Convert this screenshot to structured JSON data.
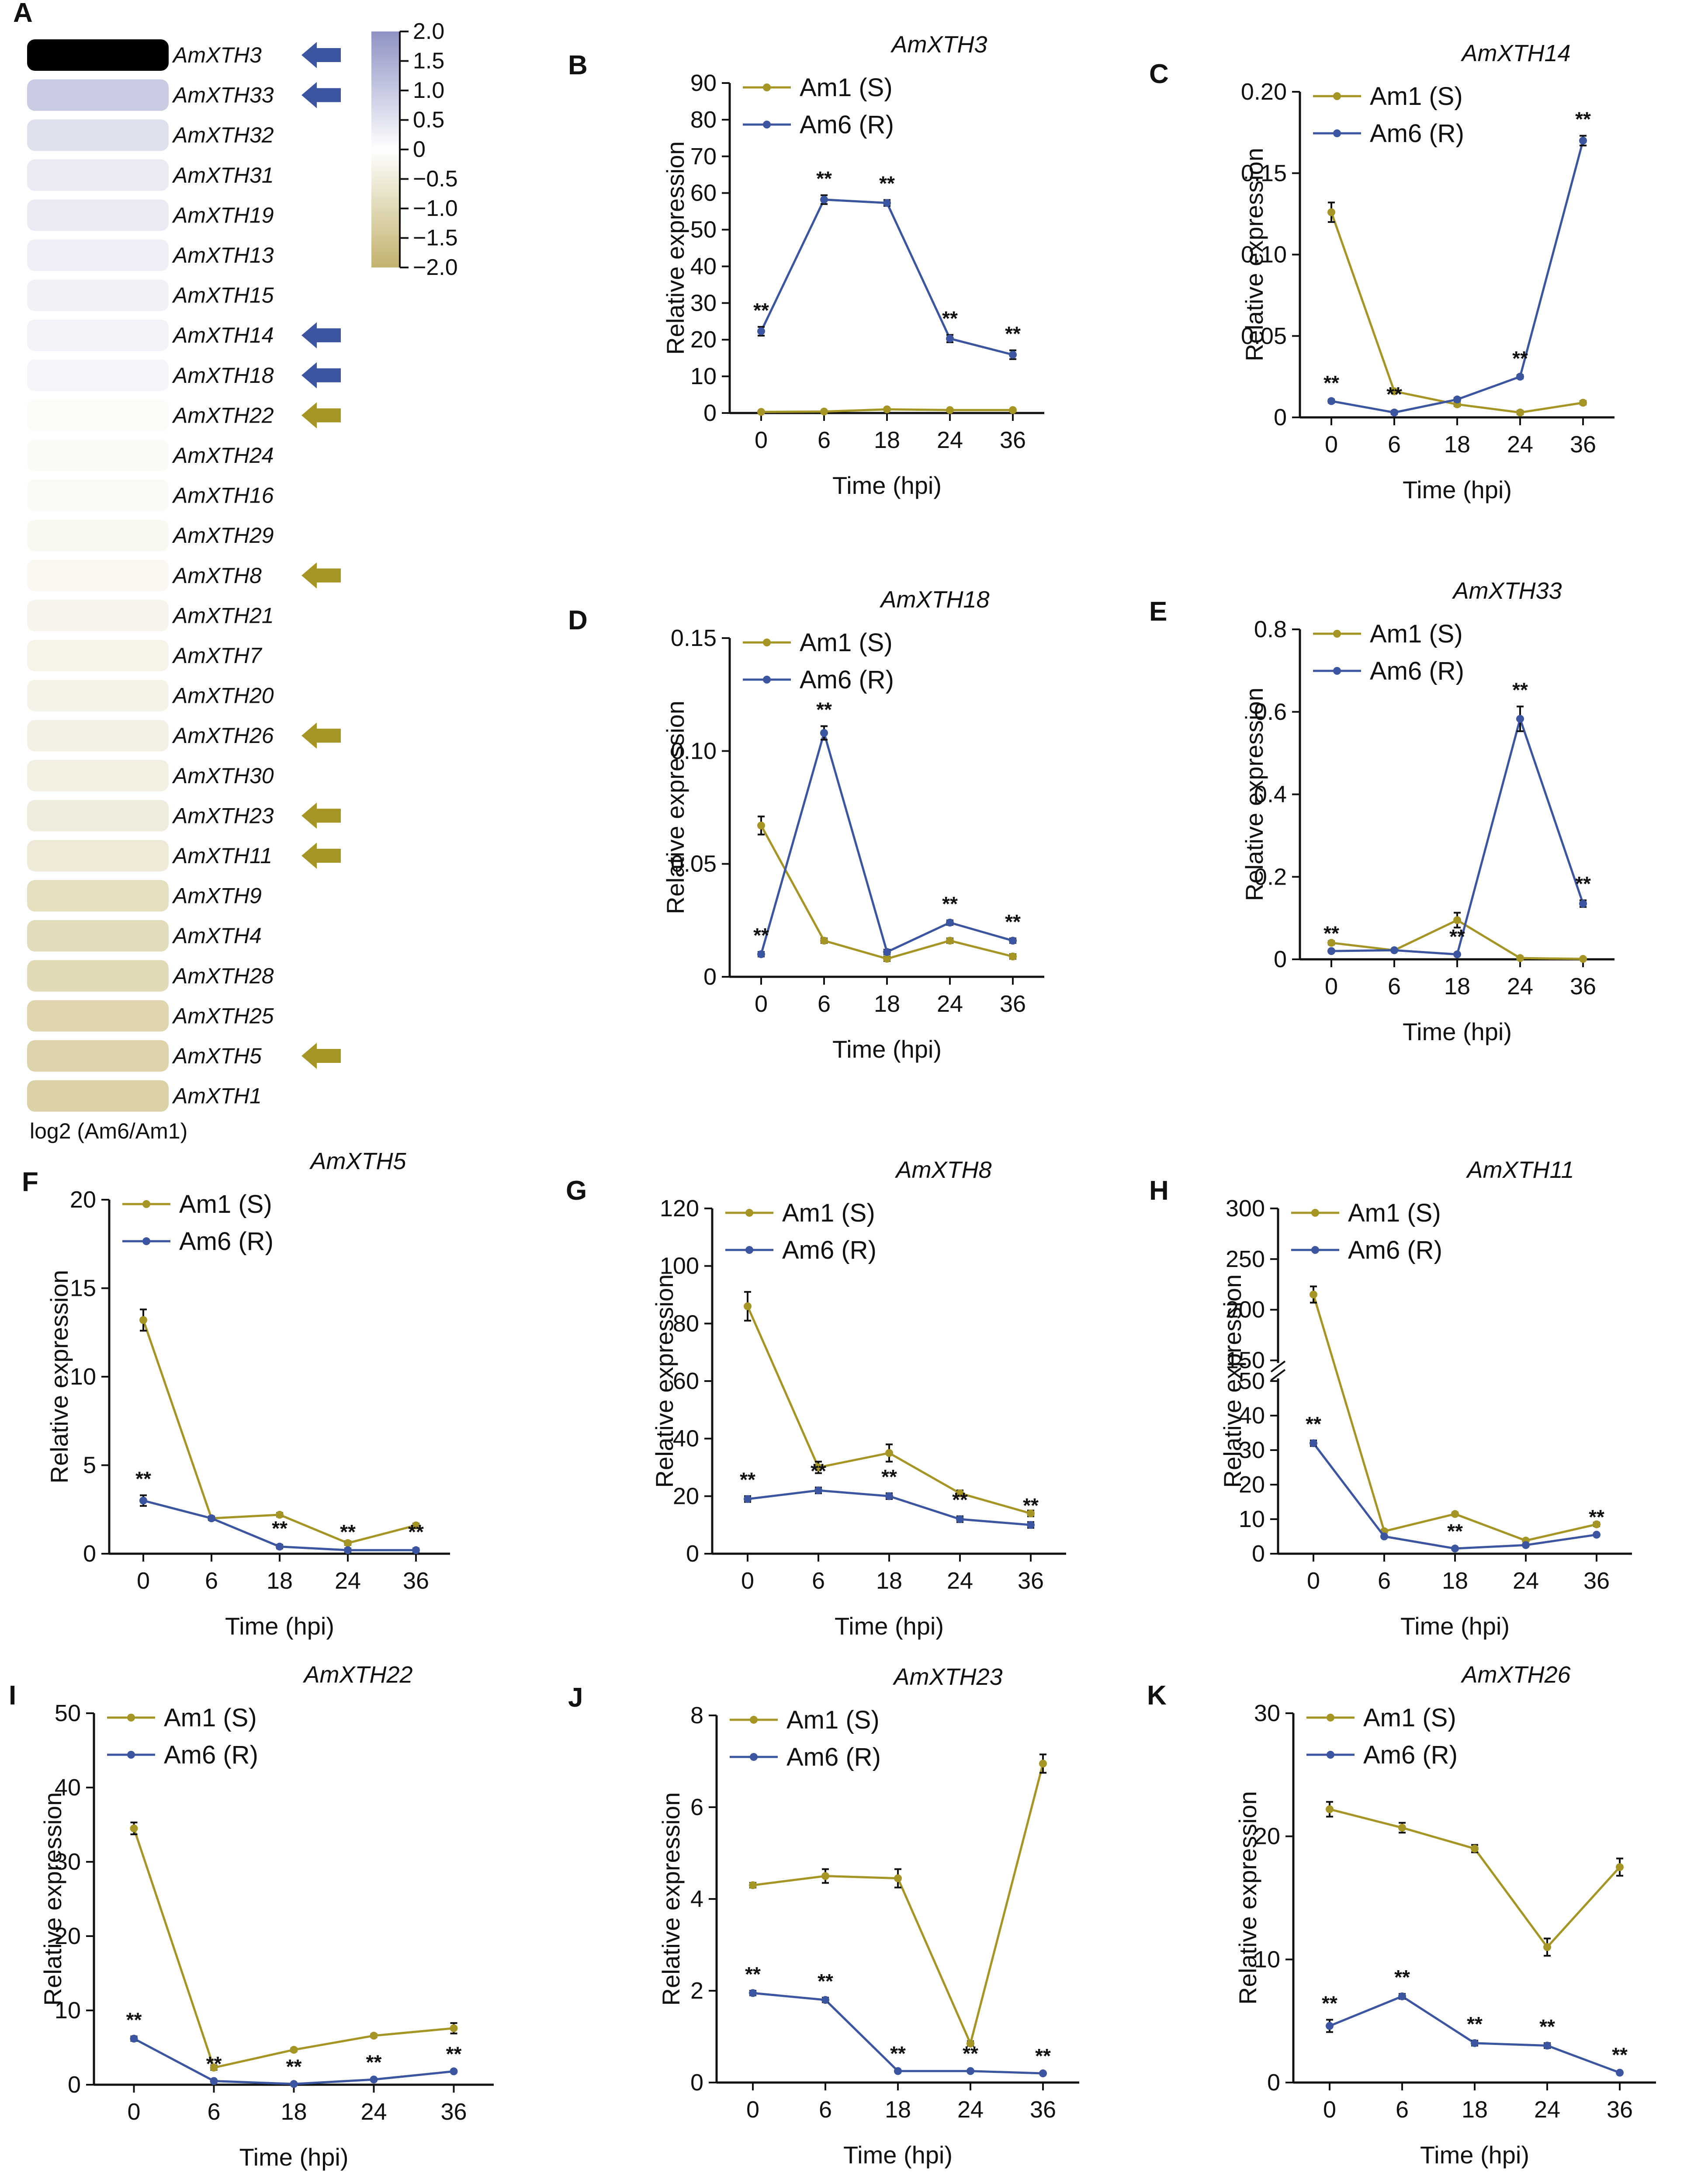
{
  "colors": {
    "am1": "#a59524",
    "am6": "#3c55a0",
    "arrow_up": "#3c55a0",
    "arrow_down": "#a59524",
    "text": "#111111"
  },
  "heatmap": {
    "panel_label": "A",
    "footer_label": "log2 (Am6/Am1)",
    "colorbar_ticks": [
      "2.0",
      "1.5",
      "1.0",
      "0.5",
      "0",
      "−0.5",
      "−1.0",
      "−1.5",
      "−2.0"
    ],
    "rows": [
      {
        "gene": "AmXTH3",
        "value": 2.0,
        "arrow": "up"
      },
      {
        "gene": "AmXTH33",
        "value": 0.75,
        "arrow": "up"
      },
      {
        "gene": "AmXTH32",
        "value": 0.45,
        "arrow": ""
      },
      {
        "gene": "AmXTH31",
        "value": 0.3,
        "arrow": ""
      },
      {
        "gene": "AmXTH19",
        "value": 0.28,
        "arrow": ""
      },
      {
        "gene": "AmXTH13",
        "value": 0.22,
        "arrow": ""
      },
      {
        "gene": "AmXTH15",
        "value": 0.2,
        "arrow": ""
      },
      {
        "gene": "AmXTH14",
        "value": 0.18,
        "arrow": "up"
      },
      {
        "gene": "AmXTH18",
        "value": 0.15,
        "arrow": "up"
      },
      {
        "gene": "AmXTH22",
        "value": -0.1,
        "arrow": "down"
      },
      {
        "gene": "AmXTH24",
        "value": -0.12,
        "arrow": ""
      },
      {
        "gene": "AmXTH16",
        "value": -0.15,
        "arrow": ""
      },
      {
        "gene": "AmXTH29",
        "value": -0.17,
        "arrow": ""
      },
      {
        "gene": "AmXTH8",
        "value": -0.2,
        "arrow": "down"
      },
      {
        "gene": "AmXTH21",
        "value": -0.25,
        "arrow": ""
      },
      {
        "gene": "AmXTH7",
        "value": -0.27,
        "arrow": ""
      },
      {
        "gene": "AmXTH20",
        "value": -0.3,
        "arrow": ""
      },
      {
        "gene": "AmXTH26",
        "value": -0.35,
        "arrow": "down"
      },
      {
        "gene": "AmXTH30",
        "value": -0.38,
        "arrow": ""
      },
      {
        "gene": "AmXTH23",
        "value": -0.45,
        "arrow": "down"
      },
      {
        "gene": "AmXTH11",
        "value": -0.5,
        "arrow": "down"
      },
      {
        "gene": "AmXTH9",
        "value": -0.8,
        "arrow": ""
      },
      {
        "gene": "AmXTH4",
        "value": -0.85,
        "arrow": ""
      },
      {
        "gene": "AmXTH28",
        "value": -0.9,
        "arrow": ""
      },
      {
        "gene": "AmXTH25",
        "value": -1.0,
        "arrow": ""
      },
      {
        "gene": "AmXTH5",
        "value": -1.05,
        "arrow": "down"
      },
      {
        "gene": "AmXTH1",
        "value": -1.1,
        "arrow": ""
      }
    ]
  },
  "chart_data": [
    {
      "type": "line",
      "panel": "B",
      "title": "AmXTH3",
      "xlabel": "Time (hpi)",
      "ylabel": "Relative expression",
      "categories": [
        "0",
        "6",
        "18",
        "24",
        "36"
      ],
      "ylim": [
        0,
        90
      ],
      "yticks": [
        "0",
        "10",
        "20",
        "30",
        "40",
        "50",
        "60",
        "70",
        "80",
        "90"
      ],
      "series": [
        {
          "name": "Am1 (S)",
          "values": [
            0.3,
            0.4,
            1.0,
            0.8,
            0.8
          ],
          "errors": [
            0.2,
            0.2,
            0.2,
            0.2,
            0.2
          ]
        },
        {
          "name": "Am6 (R)",
          "values": [
            22.3,
            58.2,
            57.3,
            20.3,
            15.9
          ],
          "errors": [
            1.2,
            1.2,
            0.8,
            1.0,
            1.2
          ]
        }
      ],
      "significance": [
        "**",
        "**",
        "**",
        "**",
        "**"
      ]
    },
    {
      "type": "line",
      "panel": "C",
      "title": "AmXTH14",
      "xlabel": "Time (hpi)",
      "ylabel": "Relative expression",
      "categories": [
        "0",
        "6",
        "18",
        "24",
        "36"
      ],
      "ylim": [
        0,
        0.2
      ],
      "yticks": [
        "0",
        "0.05",
        "0.10",
        "0.15",
        "0.20"
      ],
      "series": [
        {
          "name": "Am1 (S)",
          "values": [
            0.126,
            0.016,
            0.008,
            0.003,
            0.009
          ],
          "errors": [
            0.006,
            0.001,
            0.001,
            0.001,
            0.001
          ]
        },
        {
          "name": "Am6 (R)",
          "values": [
            0.01,
            0.003,
            0.011,
            0.025,
            0.17
          ],
          "errors": [
            0.001,
            0.001,
            0.001,
            0.001,
            0.003
          ]
        }
      ],
      "significance": [
        "**",
        "**",
        "",
        "**",
        "**"
      ]
    },
    {
      "type": "line",
      "panel": "D",
      "title": "AmXTH18",
      "xlabel": "Time (hpi)",
      "ylabel": "Relative expression",
      "categories": [
        "0",
        "6",
        "18",
        "24",
        "36"
      ],
      "ylim": [
        0,
        0.15
      ],
      "yticks": [
        "0",
        "0.05",
        "0.10",
        "0.15"
      ],
      "series": [
        {
          "name": "Am1 (S)",
          "values": [
            0.067,
            0.016,
            0.008,
            0.016,
            0.009
          ],
          "errors": [
            0.004,
            0.001,
            0.001,
            0.001,
            0.001
          ]
        },
        {
          "name": "Am6 (R)",
          "values": [
            0.01,
            0.108,
            0.011,
            0.024,
            0.016
          ],
          "errors": [
            0.001,
            0.003,
            0.001,
            0.001,
            0.001
          ]
        }
      ],
      "significance": [
        "**",
        "**",
        "",
        "**",
        "**"
      ]
    },
    {
      "type": "line",
      "panel": "E",
      "title": "AmXTH33",
      "xlabel": "Time (hpi)",
      "ylabel": "Relative expression",
      "categories": [
        "0",
        "6",
        "18",
        "24",
        "36"
      ],
      "ylim": [
        0,
        0.8
      ],
      "yticks": [
        "0",
        "0.2",
        "0.4",
        "0.6",
        "0.8"
      ],
      "series": [
        {
          "name": "Am1 (S)",
          "values": [
            0.04,
            0.022,
            0.095,
            0.003,
            0.001
          ],
          "errors": [
            0.004,
            0.003,
            0.018,
            0.001,
            0.001
          ]
        },
        {
          "name": "Am6 (R)",
          "values": [
            0.02,
            0.022,
            0.012,
            0.583,
            0.135
          ],
          "errors": [
            0.003,
            0.003,
            0.003,
            0.03,
            0.008
          ]
        }
      ],
      "significance": [
        "**",
        "",
        "**",
        "**",
        "**"
      ]
    },
    {
      "type": "line",
      "panel": "F",
      "title": "AmXTH5",
      "xlabel": "Time (hpi)",
      "ylabel": "Relative expression",
      "categories": [
        "0",
        "6",
        "18",
        "24",
        "36"
      ],
      "ylim": [
        0,
        20
      ],
      "yticks": [
        "0",
        "5",
        "10",
        "15",
        "20"
      ],
      "series": [
        {
          "name": "Am1 (S)",
          "values": [
            13.2,
            2.0,
            2.2,
            0.6,
            1.6
          ],
          "errors": [
            0.6,
            0.1,
            0.1,
            0.1,
            0.1
          ]
        },
        {
          "name": "Am6 (R)",
          "values": [
            3.0,
            2.0,
            0.4,
            0.2,
            0.2
          ],
          "errors": [
            0.3,
            0.1,
            0.1,
            0.1,
            0.1
          ]
        }
      ],
      "significance": [
        "**",
        "",
        "**",
        "**",
        "**"
      ]
    },
    {
      "type": "line",
      "panel": "G",
      "title": "AmXTH8",
      "xlabel": "Time (hpi)",
      "ylabel": "Relative expression",
      "categories": [
        "0",
        "6",
        "18",
        "24",
        "36"
      ],
      "ylim": [
        0,
        120
      ],
      "yticks": [
        "0",
        "20",
        "40",
        "60",
        "80",
        "100",
        "120"
      ],
      "series": [
        {
          "name": "Am1 (S)",
          "values": [
            86,
            30,
            35,
            21,
            14
          ],
          "errors": [
            5,
            2,
            3,
            1,
            1
          ]
        },
        {
          "name": "Am6 (R)",
          "values": [
            19,
            22,
            20,
            12,
            10
          ],
          "errors": [
            1,
            1,
            1,
            1,
            1
          ]
        }
      ],
      "significance": [
        "**",
        "**",
        "**",
        "**",
        "**"
      ]
    },
    {
      "type": "line",
      "panel": "H",
      "title": "AmXTH11",
      "xlabel": "Time (hpi)",
      "ylabel": "Relative expression",
      "categories": [
        "0",
        "6",
        "18",
        "24",
        "36"
      ],
      "ylim": [
        0,
        300
      ],
      "axis_break": [
        50,
        150
      ],
      "yticks": [
        "0",
        "10",
        "20",
        "30",
        "40",
        "50",
        "150",
        "200",
        "250",
        "300"
      ],
      "series": [
        {
          "name": "Am1 (S)",
          "values": [
            215,
            6.5,
            11.5,
            3.8,
            8.5
          ],
          "errors": [
            8,
            0.4,
            0.4,
            0.3,
            0.5
          ]
        },
        {
          "name": "Am6 (R)",
          "values": [
            32,
            5,
            1.5,
            2.5,
            5.5
          ],
          "errors": [
            0.8,
            0.3,
            0.2,
            0.2,
            0.3
          ]
        }
      ],
      "significance": [
        "**",
        "",
        "**",
        "",
        "**"
      ]
    },
    {
      "type": "line",
      "panel": "I",
      "title": "AmXTH22",
      "xlabel": "Time (hpi)",
      "ylabel": "Relative expression",
      "categories": [
        "0",
        "6",
        "18",
        "24",
        "36"
      ],
      "ylim": [
        0,
        50
      ],
      "yticks": [
        "0",
        "10",
        "20",
        "30",
        "40",
        "50"
      ],
      "series": [
        {
          "name": "Am1 (S)",
          "values": [
            34.5,
            2.3,
            4.7,
            6.6,
            7.6
          ],
          "errors": [
            0.8,
            0.3,
            0.2,
            0.2,
            0.7
          ]
        },
        {
          "name": "Am6 (R)",
          "values": [
            6.2,
            0.5,
            0.1,
            0.7,
            1.8
          ],
          "errors": [
            0.3,
            0.1,
            0.1,
            0.1,
            0.1
          ]
        }
      ],
      "significance": [
        "**",
        "**",
        "**",
        "**",
        "**"
      ]
    },
    {
      "type": "line",
      "panel": "J",
      "title": "AmXTH23",
      "xlabel": "Time (hpi)",
      "ylabel": "Relative expression",
      "categories": [
        "0",
        "6",
        "18",
        "24",
        "36"
      ],
      "ylim": [
        0,
        8
      ],
      "yticks": [
        "0",
        "2",
        "4",
        "6",
        "8"
      ],
      "series": [
        {
          "name": "Am1 (S)",
          "values": [
            4.3,
            4.5,
            4.45,
            0.85,
            6.95
          ],
          "errors": [
            0.05,
            0.15,
            0.2,
            0.05,
            0.2
          ]
        },
        {
          "name": "Am6 (R)",
          "values": [
            1.95,
            1.8,
            0.25,
            0.25,
            0.2
          ],
          "errors": [
            0.05,
            0.05,
            0.02,
            0.02,
            0.02
          ]
        }
      ],
      "significance": [
        "**",
        "**",
        "**",
        "**",
        "**"
      ]
    },
    {
      "type": "line",
      "panel": "K",
      "title": "AmXTH26",
      "xlabel": "Time (hpi)",
      "ylabel": "Relative expression",
      "categories": [
        "0",
        "6",
        "18",
        "24",
        "36"
      ],
      "ylim": [
        0,
        30
      ],
      "yticks": [
        "0",
        "10",
        "20",
        "30"
      ],
      "series": [
        {
          "name": "Am1 (S)",
          "values": [
            22.2,
            20.7,
            19.0,
            11.0,
            17.5
          ],
          "errors": [
            0.6,
            0.4,
            0.3,
            0.7,
            0.7
          ]
        },
        {
          "name": "Am6 (R)",
          "values": [
            4.6,
            7.0,
            3.2,
            3.0,
            0.8
          ],
          "errors": [
            0.5,
            0.2,
            0.2,
            0.2,
            0.1
          ]
        }
      ],
      "significance": [
        "**",
        "**",
        "**",
        "**",
        "**"
      ]
    }
  ]
}
